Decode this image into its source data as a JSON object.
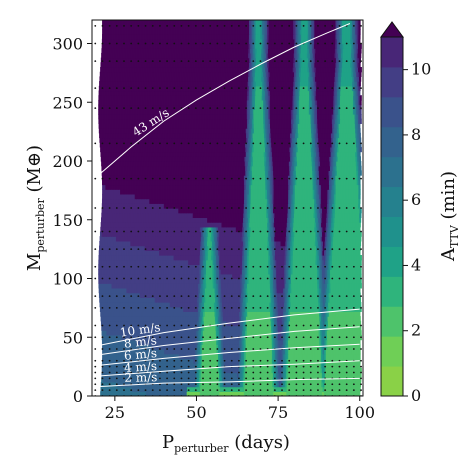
{
  "chart_data": {
    "type": "heatmap",
    "title": "",
    "xlabel": {
      "main": "P",
      "sub": "perturber",
      "rest": " (days)"
    },
    "ylabel": {
      "main": "M",
      "sub": "perturber",
      "rest": " (M",
      "symbol": "⊕",
      "close": ")"
    },
    "xlim": [
      18,
      101
    ],
    "ylim": [
      0,
      320
    ],
    "xticks": [
      25,
      50,
      75,
      100
    ],
    "yticks": [
      0,
      50,
      100,
      150,
      200,
      250,
      300
    ],
    "colorbar": {
      "label_main": "A",
      "label_sub": "TTV",
      "label_rest": " (min)",
      "range": [
        0,
        11
      ],
      "ticks": [
        0,
        2,
        4,
        6,
        8,
        10
      ],
      "extend": "max",
      "colors": [
        "#8ad147",
        "#6fcf56",
        "#4ec36b",
        "#2fb47c",
        "#1fa287",
        "#1f918c",
        "#25818e",
        "#2c718e",
        "#33628d",
        "#3a528b",
        "#433e85",
        "#482677"
      ],
      "over_color": "#440154"
    },
    "contour_lines": [
      {
        "label": "43 m/s",
        "points": [
          [
            20,
            188
          ],
          [
            30,
            212
          ],
          [
            40,
            234
          ],
          [
            50,
            252
          ],
          [
            60,
            268
          ],
          [
            70,
            283
          ],
          [
            80,
            297
          ],
          [
            90,
            309
          ],
          [
            97,
            317
          ]
        ]
      },
      {
        "label": "10 m/s",
        "points": [
          [
            20,
            43
          ],
          [
            40,
            54
          ],
          [
            60,
            62
          ],
          [
            80,
            69
          ],
          [
            100,
            74
          ]
        ]
      },
      {
        "label": "8 m/s",
        "points": [
          [
            20,
            35
          ],
          [
            40,
            43
          ],
          [
            60,
            49
          ],
          [
            80,
            55
          ],
          [
            100,
            59
          ]
        ]
      },
      {
        "label": "6 m/s",
        "points": [
          [
            20,
            26
          ],
          [
            40,
            32
          ],
          [
            60,
            37
          ],
          [
            80,
            41
          ],
          [
            100,
            44
          ]
        ]
      },
      {
        "label": "4 m/s",
        "points": [
          [
            20,
            17
          ],
          [
            40,
            21
          ],
          [
            60,
            25
          ],
          [
            80,
            27
          ],
          [
            100,
            30
          ]
        ]
      },
      {
        "label": "2 m/s",
        "points": [
          [
            20,
            8
          ],
          [
            40,
            11
          ],
          [
            60,
            12
          ],
          [
            80,
            14
          ],
          [
            100,
            15
          ]
        ]
      }
    ],
    "resonance_spikes": [
      {
        "x": 54,
        "peak": 145,
        "width": 3.0
      },
      {
        "x": 69,
        "peak": 320,
        "width": 4.5
      },
      {
        "x": 83,
        "peak": 320,
        "width": 5.5
      },
      {
        "x": 96,
        "peak": 320,
        "width": 7.0
      }
    ],
    "grid": false,
    "legend": "none"
  }
}
